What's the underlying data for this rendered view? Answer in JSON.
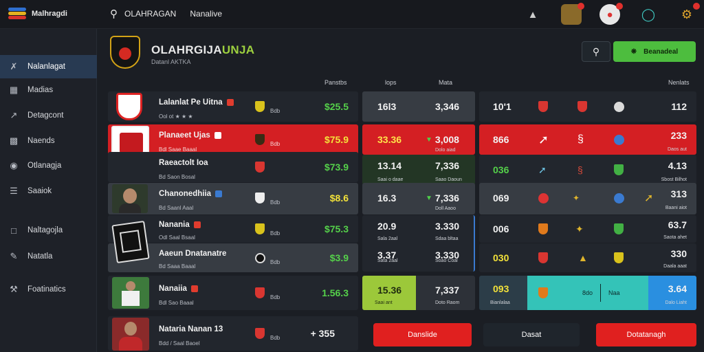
{
  "topbar": {
    "brand": "Malhragdi",
    "search_text": "OLAHRAGAN",
    "tab": "Nanalive",
    "colors": {
      "bg": "#17191e",
      "accent_red": "#d41f23",
      "accent_green": "#4dbd3e"
    }
  },
  "sidebar": {
    "items": [
      {
        "label": "Nalanlagat",
        "icon": "bolt-icon"
      },
      {
        "label": "Madias",
        "icon": "grid-icon"
      },
      {
        "label": "Detagcont",
        "icon": "trend-icon"
      },
      {
        "label": "Naends",
        "icon": "people-icon"
      },
      {
        "label": "Otlanagja",
        "icon": "globe-icon"
      },
      {
        "label": "Saaiok",
        "icon": "list-icon"
      },
      {
        "label": "Naltagojla",
        "icon": "message-icon"
      },
      {
        "label": "Natatla",
        "icon": "pen-icon"
      },
      {
        "label": "Foatinatics",
        "icon": "tools-icon"
      }
    ]
  },
  "header": {
    "title": "OLAHRGIJA",
    "title_accent": "UNJA",
    "subtitle": "Datanl AKTKA",
    "action_label": "Beanadeal"
  },
  "columns": {
    "panel_a": "Panstbs",
    "panel_b_1": "lops",
    "panel_b_2": "Mata",
    "panel_c": "Nenlats"
  },
  "rows": [
    {
      "name": "Lalanlat Pe Uitna",
      "meta": "Ool ot ★ ★ ★",
      "small": "Bdb",
      "price": "$25.5",
      "b1": "16l3",
      "b2": "3,346",
      "c1": "10'1",
      "c2": "112"
    },
    {
      "name": "Planaeet Ujas",
      "meta": "Bdl Saae Baaal",
      "small": "Bdb",
      "price": "$75.9",
      "b1": "33.36",
      "b2": "3,008",
      "b2_sub": "Dolo aiad",
      "c1": "866",
      "c2": "233",
      "c2_sub": "Daos aut"
    },
    {
      "name": "Raeactolt Ioa",
      "meta": "Bd Saon Bosal",
      "small": "",
      "price": "$73.9",
      "b1": "13.14",
      "b1_sub": "Saai o daae",
      "b2": "7,336",
      "b2_sub": "Saao Daoun",
      "c1": "036",
      "c2": "4.13",
      "c2_sub": "Sbost Bilhot"
    },
    {
      "name": "Chanonedhiia",
      "meta": "Bd Saanl Aaal",
      "small": "Bdb",
      "price": "$8.6",
      "b1": "16.3",
      "b2": "7,336",
      "b2_sub": "Doll Aaoo",
      "c1": "069",
      "c2": "313",
      "c2_sub": "Baani aiot"
    },
    {
      "name": "Nanania",
      "meta": "Odl Saal Bsaal",
      "small": "Bdb",
      "price": "$75.3",
      "b1": "20.9",
      "b1_sub": "Sala 2aal",
      "b2": "3.330",
      "b2_sub": "Sdaa bltaa",
      "c1": "006",
      "c2": "63.7",
      "c2_sub": "Saota ahet"
    },
    {
      "name": "Aaeun Dnatanatre",
      "meta": "Bd Saaa Baaal",
      "small": "Bdb",
      "price": "$3.9",
      "b1": "3.37",
      "b1_sub": "Sata 2aal",
      "b2": "3.330",
      "b2_sub": "Soao Coal",
      "c1": "030",
      "c2": "330",
      "c2_sub": "Daala aaat"
    },
    {
      "name": "Nanaiia",
      "meta": "Bdl Sao Baaal",
      "small": "Bdb",
      "price": "1.56.3",
      "b1": "15.36",
      "b1_sub": "Saai ant",
      "b2": "7,337",
      "b2_sub": "Doto Raom",
      "c1": "093",
      "c1_sub": "Bianlalaa",
      "c_mid_1": "8do",
      "c_mid_2": "Naa",
      "c2": "3.64",
      "c2_sub": "Dalo Liaht"
    },
    {
      "name": "Nataria Nanan 13",
      "meta": "Bdd / Saal Baoel",
      "small": "Bdb",
      "price": "+ 355"
    }
  ],
  "buttons": {
    "left": "Danslide",
    "mid": "Dasat",
    "right": "Dotatanagh"
  }
}
